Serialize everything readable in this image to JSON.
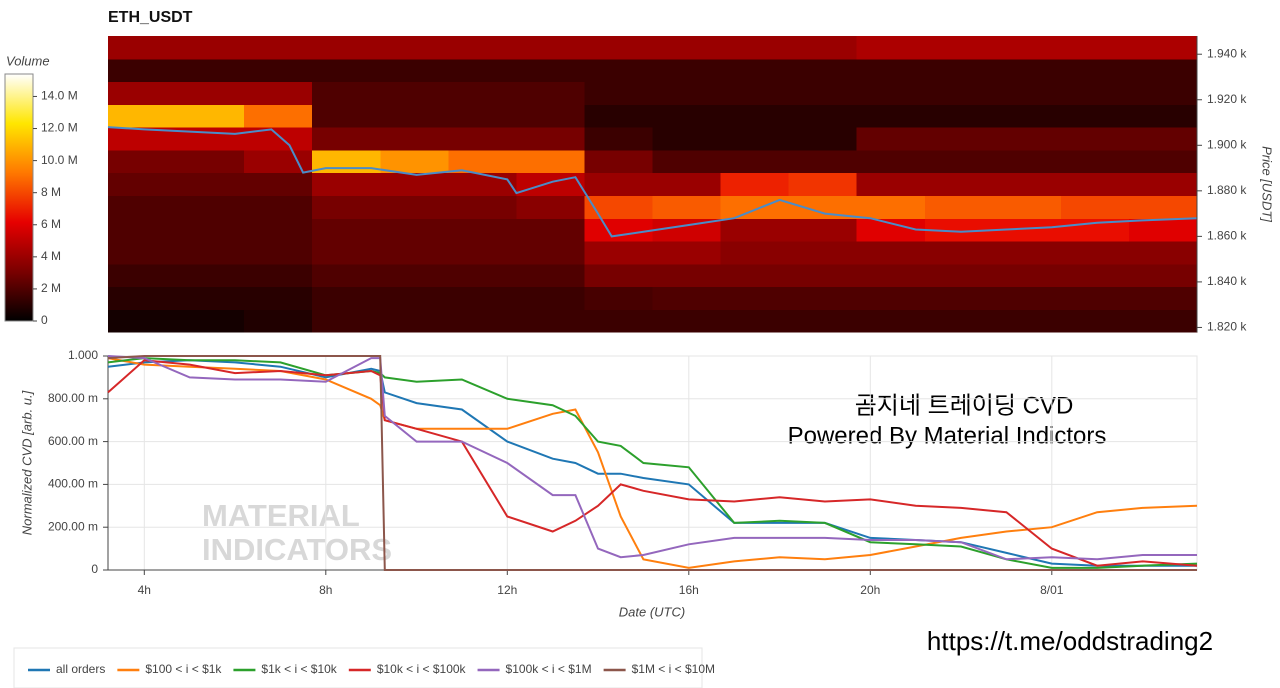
{
  "chart_data": [
    {
      "type": "heatmap",
      "title": "ETH_USDT",
      "xlim": [
        3.2,
        27.2
      ],
      "ylim": [
        1818,
        1948
      ],
      "y_axis_position": "right",
      "ylabel": "Price [USDT]",
      "yticks": [
        {
          "value": 1820,
          "label": "1.820 k"
        },
        {
          "value": 1840,
          "label": "1.840 k"
        },
        {
          "value": 1860,
          "label": "1.860 k"
        },
        {
          "value": 1880,
          "label": "1.880 k"
        },
        {
          "value": 1900,
          "label": "1.900 k"
        },
        {
          "value": 1920,
          "label": "1.920 k"
        },
        {
          "value": 1940,
          "label": "1.940 k"
        }
      ],
      "x": [
        3.2,
        4.7,
        6.2,
        7.7,
        9.2,
        10.7,
        12.2,
        13.7,
        15.2,
        16.7,
        18.2,
        19.7,
        21.2,
        22.7,
        24.2,
        25.7,
        27.2
      ],
      "y": [
        1818,
        1828,
        1838,
        1848,
        1858,
        1868,
        1878,
        1888,
        1898,
        1908,
        1918,
        1928,
        1938,
        1948
      ],
      "z": [
        [
          0.5,
          0.5,
          0.8,
          1.5,
          1.5,
          1.5,
          1.5,
          1.5,
          1.5,
          1.5,
          1.5,
          1.5,
          1.5,
          1.5,
          1.5,
          1.5
        ],
        [
          1,
          1,
          1,
          1.5,
          1.5,
          1.5,
          1.5,
          1.8,
          2,
          2,
          2,
          2,
          2,
          2,
          2,
          2
        ],
        [
          1.5,
          1.5,
          1.5,
          2,
          2,
          2,
          2,
          3,
          3,
          3,
          3,
          3,
          3,
          3,
          3,
          3
        ],
        [
          2,
          2,
          2,
          2.5,
          2.5,
          2.5,
          2.5,
          4,
          4,
          3.5,
          3.5,
          3.5,
          3.5,
          3.5,
          3.5,
          3.5
        ],
        [
          2,
          2,
          2,
          2.5,
          2.5,
          2.5,
          2.5,
          6,
          5.5,
          4,
          4,
          6,
          6.5,
          6.5,
          6.5,
          6
        ],
        [
          2,
          2,
          2,
          3,
          3,
          3,
          3.5,
          8,
          8.5,
          9,
          9,
          9,
          8.5,
          8.5,
          8,
          8
        ],
        [
          2.5,
          2.5,
          2.5,
          4,
          4,
          4,
          5,
          4,
          4,
          7,
          7.5,
          4,
          4,
          4,
          4,
          4
        ],
        [
          3,
          3,
          4,
          11,
          10,
          9,
          9,
          3,
          2,
          2,
          2,
          2,
          2,
          2,
          2,
          2
        ],
        [
          5,
          5,
          5,
          3,
          3,
          3,
          3,
          1.5,
          1,
          1,
          1,
          2.5,
          2.5,
          2.5,
          2.5,
          2.5
        ],
        [
          11,
          11,
          9,
          2,
          2,
          2,
          2,
          1,
          1,
          1,
          1,
          1,
          1,
          1,
          1,
          1
        ],
        [
          4,
          4,
          4,
          2,
          2,
          2,
          2,
          1.5,
          1.5,
          1.5,
          1.5,
          1.5,
          1.5,
          1.5,
          1.5,
          1.5
        ],
        [
          1.5,
          1.5,
          1.5,
          1.5,
          1.5,
          1.5,
          1.5,
          1.5,
          1.5,
          1.5,
          1.5,
          1.5,
          1.5,
          1.5,
          1.5,
          1.5
        ],
        [
          4,
          4,
          4,
          4,
          4,
          4,
          4,
          4,
          4,
          4,
          4,
          4.5,
          4.5,
          4.5,
          4.5,
          4.5
        ]
      ],
      "colormap": [
        "#000000",
        "#7a0000",
        "#e60000",
        "#ff7800",
        "#ffe600",
        "#ffffff"
      ],
      "zlim": [
        0,
        15.4
      ],
      "colorbar_label": "Volume",
      "zticks": [
        0,
        {
          "value": 2,
          "label": "2 M"
        },
        {
          "value": 4,
          "label": "4 M"
        },
        {
          "value": 6,
          "label": "6 M"
        },
        {
          "value": 8,
          "label": "8 M"
        },
        {
          "value": 10,
          "label": "10.0 M"
        },
        {
          "value": 12,
          "label": "12.0 M"
        },
        {
          "value": 14,
          "label": "14.0 M"
        }
      ],
      "line": {
        "color": "#4a8cc8",
        "x": [
          3.2,
          4,
          5,
          6,
          6.8,
          7.2,
          7.5,
          8,
          9,
          10,
          11,
          12,
          12.2,
          13,
          13.5,
          14,
          14.3,
          15,
          16,
          17,
          18,
          19,
          20,
          21,
          22,
          23,
          24,
          25,
          26,
          27.2
        ],
        "values": [
          1908,
          1907,
          1906,
          1905,
          1907,
          1900,
          1888,
          1890,
          1890,
          1887,
          1889,
          1885,
          1879,
          1884,
          1886,
          1870,
          1860,
          1862,
          1865,
          1868,
          1876,
          1870,
          1868,
          1863,
          1862,
          1863,
          1864,
          1866,
          1867,
          1868
        ]
      }
    },
    {
      "type": "line",
      "xlabel": "Date (UTC)",
      "ylabel": "Normalized CVD [arb. u.]",
      "grid": true,
      "legend": "below",
      "xlim": [
        3.2,
        27.2
      ],
      "ylim": [
        0,
        1
      ],
      "xticks": [
        {
          "value": 4,
          "label": "4h"
        },
        {
          "value": 8,
          "label": "8h"
        },
        {
          "value": 12,
          "label": "12h"
        },
        {
          "value": 16,
          "label": "16h"
        },
        {
          "value": 20,
          "label": "20h"
        },
        {
          "value": 24,
          "label": "8/01"
        }
      ],
      "yticks": [
        0,
        {
          "value": 0.2,
          "label": "200.00 m"
        },
        {
          "value": 0.4,
          "label": "400.00 m"
        },
        {
          "value": 0.6,
          "label": "600.00 m"
        },
        {
          "value": 0.8,
          "label": "800.00 m"
        },
        {
          "value": 1,
          "label": "1.000"
        }
      ],
      "annotations": [
        "곰지네 트레이딩 CVD",
        "Powered By Material Indictors"
      ],
      "watermark": [
        "MATERIAL",
        "INDICATORS"
      ],
      "x": [
        3.2,
        4,
        5,
        6,
        7,
        8,
        9,
        9.2,
        9.3,
        10,
        11,
        12,
        13,
        13.5,
        14,
        14.5,
        15,
        16,
        17,
        18,
        19,
        20,
        21,
        22,
        23,
        24,
        25,
        26,
        27.2
      ],
      "series": [
        {
          "name": "all orders",
          "color": "#1f77b4",
          "values": [
            0.95,
            0.97,
            0.98,
            0.97,
            0.95,
            0.9,
            0.94,
            0.93,
            0.83,
            0.78,
            0.75,
            0.6,
            0.52,
            0.5,
            0.45,
            0.45,
            0.43,
            0.4,
            0.22,
            0.22,
            0.22,
            0.15,
            0.14,
            0.13,
            0.08,
            0.03,
            0.02,
            0.02,
            0.02
          ]
        },
        {
          "name": "$100 < i < $1k",
          "color": "#ff7f0e",
          "values": [
            0.99,
            0.96,
            0.95,
            0.94,
            0.93,
            0.89,
            0.8,
            0.77,
            0.7,
            0.66,
            0.66,
            0.66,
            0.73,
            0.75,
            0.55,
            0.25,
            0.05,
            0.01,
            0.04,
            0.06,
            0.05,
            0.07,
            0.11,
            0.15,
            0.18,
            0.2,
            0.27,
            0.29,
            0.3
          ]
        },
        {
          "name": "$1k < i < $10k",
          "color": "#2ca02c",
          "values": [
            0.97,
            0.99,
            0.98,
            0.98,
            0.97,
            0.91,
            0.93,
            0.92,
            0.9,
            0.88,
            0.89,
            0.8,
            0.77,
            0.72,
            0.6,
            0.58,
            0.5,
            0.48,
            0.22,
            0.23,
            0.22,
            0.13,
            0.12,
            0.11,
            0.05,
            0.01,
            0.01,
            0.02,
            0.03
          ]
        },
        {
          "name": "$10k < i < $100k",
          "color": "#d62728",
          "values": [
            0.83,
            0.98,
            0.96,
            0.92,
            0.93,
            0.91,
            0.93,
            0.91,
            0.7,
            0.66,
            0.6,
            0.25,
            0.18,
            0.23,
            0.3,
            0.4,
            0.37,
            0.33,
            0.32,
            0.34,
            0.32,
            0.33,
            0.3,
            0.29,
            0.27,
            0.1,
            0.02,
            0.04,
            0.02
          ]
        },
        {
          "name": "$100k < i < $1M",
          "color": "#9467bd",
          "values": [
            1.0,
            0.99,
            0.9,
            0.89,
            0.89,
            0.88,
            0.99,
            0.99,
            0.72,
            0.6,
            0.6,
            0.5,
            0.35,
            0.35,
            0.1,
            0.06,
            0.07,
            0.12,
            0.15,
            0.15,
            0.15,
            0.14,
            0.14,
            0.13,
            0.05,
            0.06,
            0.05,
            0.07,
            0.07
          ]
        },
        {
          "name": "$1M < i < $10M",
          "color": "#8c564b",
          "values": [
            0.99,
            1,
            1,
            1,
            1,
            1,
            1,
            1,
            0,
            0,
            0,
            0,
            0,
            0,
            0,
            0,
            0,
            0,
            0,
            0,
            0,
            0,
            0,
            0,
            0,
            0,
            0,
            0,
            0
          ]
        }
      ]
    }
  ],
  "link": "https://t.me/oddstrading2"
}
